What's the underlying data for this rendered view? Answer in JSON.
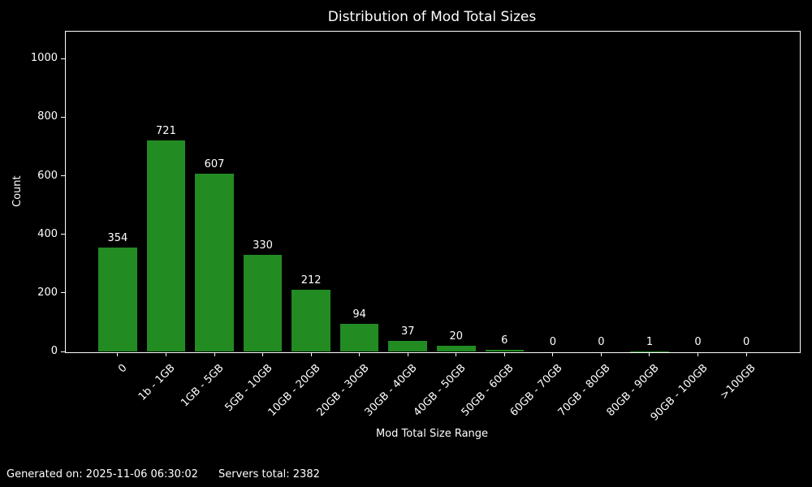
{
  "title": "Distribution of Mod Total Sizes",
  "footer": {
    "generated": "Generated on: 2025-11-06 06:30:02",
    "servers_total": "Servers total: 2382"
  },
  "chart_data": {
    "type": "bar",
    "title": "Distribution of Mod Total Sizes",
    "xlabel": "Mod Total Size Range",
    "ylabel": "Count",
    "categories": [
      "0",
      "1b - 1GB",
      "1GB - 5GB",
      "5GB - 10GB",
      "10GB - 20GB",
      "20GB - 30GB",
      "30GB - 40GB",
      "40GB - 50GB",
      "50GB - 60GB",
      "60GB - 70GB",
      "70GB - 80GB",
      "80GB - 90GB",
      "90GB - 100GB",
      ">100GB"
    ],
    "values": [
      354,
      721,
      607,
      330,
      212,
      94,
      37,
      20,
      6,
      0,
      0,
      1,
      0,
      0
    ],
    "yticks": [
      0,
      200,
      400,
      600,
      800,
      1000
    ],
    "ylim": [
      0,
      1095
    ],
    "xtick_rotation": 45,
    "bar_labels": true,
    "grid": false,
    "legend": null,
    "bar_color": "#228B22",
    "background_color": "#000000",
    "text_color": "#ffffff",
    "axis_color": "#ffffff"
  }
}
